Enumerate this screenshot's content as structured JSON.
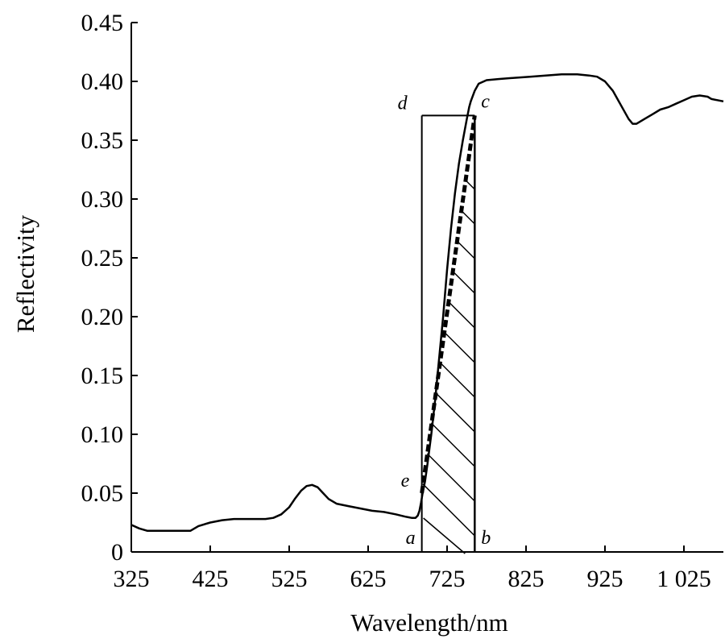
{
  "chart_data": {
    "type": "line",
    "xlabel": "Wavelength/nm",
    "ylabel": "Reflectivity",
    "xlim": [
      325,
      1075
    ],
    "ylim": [
      0,
      0.45
    ],
    "x_ticks": [
      325,
      425,
      525,
      625,
      725,
      825,
      925,
      1025
    ],
    "x_tick_labels": [
      "325",
      "425",
      "525",
      "625",
      "725",
      "825",
      "925",
      "1 025"
    ],
    "y_ticks": [
      0,
      0.05,
      0.1,
      0.15,
      0.2,
      0.25,
      0.3,
      0.35,
      0.4,
      0.45
    ],
    "y_tick_labels": [
      "0",
      "0.05",
      "0.10",
      "0.15",
      "0.20",
      "0.25",
      "0.30",
      "0.35",
      "0.40",
      "0.45"
    ],
    "grid": false,
    "series": [
      {
        "x": [
          325,
          335,
          345,
          360,
          380,
          400,
          410,
          425,
          440,
          455,
          470,
          485,
          495,
          505,
          515,
          525,
          532,
          540,
          547,
          554,
          561,
          568,
          575,
          585,
          600,
          615,
          630,
          645,
          660,
          672,
          680,
          685,
          688,
          690,
          692,
          694,
          697,
          700,
          705,
          710,
          715,
          720,
          725,
          730,
          735,
          740,
          745,
          750,
          753,
          755,
          760,
          765,
          775,
          790,
          810,
          830,
          850,
          870,
          890,
          905,
          915,
          925,
          935,
          945,
          955,
          960,
          965,
          975,
          985,
          995,
          1005,
          1015,
          1025,
          1035,
          1045,
          1055,
          1060,
          1075
        ],
        "y": [
          0.023,
          0.02,
          0.018,
          0.018,
          0.018,
          0.018,
          0.022,
          0.025,
          0.027,
          0.028,
          0.028,
          0.028,
          0.028,
          0.029,
          0.032,
          0.038,
          0.045,
          0.052,
          0.056,
          0.057,
          0.055,
          0.05,
          0.045,
          0.041,
          0.039,
          0.037,
          0.035,
          0.034,
          0.032,
          0.03,
          0.029,
          0.029,
          0.031,
          0.035,
          0.042,
          0.05,
          0.06,
          0.074,
          0.1,
          0.13,
          0.165,
          0.2,
          0.24,
          0.275,
          0.305,
          0.33,
          0.35,
          0.368,
          0.378,
          0.383,
          0.392,
          0.398,
          0.401,
          0.402,
          0.403,
          0.404,
          0.405,
          0.406,
          0.406,
          0.405,
          0.404,
          0.4,
          0.392,
          0.38,
          0.368,
          0.364,
          0.364,
          0.368,
          0.372,
          0.376,
          0.378,
          0.381,
          0.384,
          0.387,
          0.388,
          0.387,
          0.385,
          0.383
        ]
      }
    ],
    "dashed_line": {
      "x": [
        693,
        760
      ],
      "y": [
        0.05,
        0.371
      ]
    },
    "rectangle": {
      "x1": 693,
      "x2": 760,
      "y_top": 0.371
    },
    "hatched_region": {
      "x1": 693,
      "x2": 760
    },
    "point_labels": [
      {
        "text": "a",
        "x": 693,
        "y": 0.0
      },
      {
        "text": "b",
        "x": 760,
        "y": 0.0
      },
      {
        "text": "c",
        "x": 760,
        "y": 0.371
      },
      {
        "text": "d",
        "x": 693,
        "y": 0.371
      },
      {
        "text": "e",
        "x": 693,
        "y": 0.05
      }
    ]
  }
}
